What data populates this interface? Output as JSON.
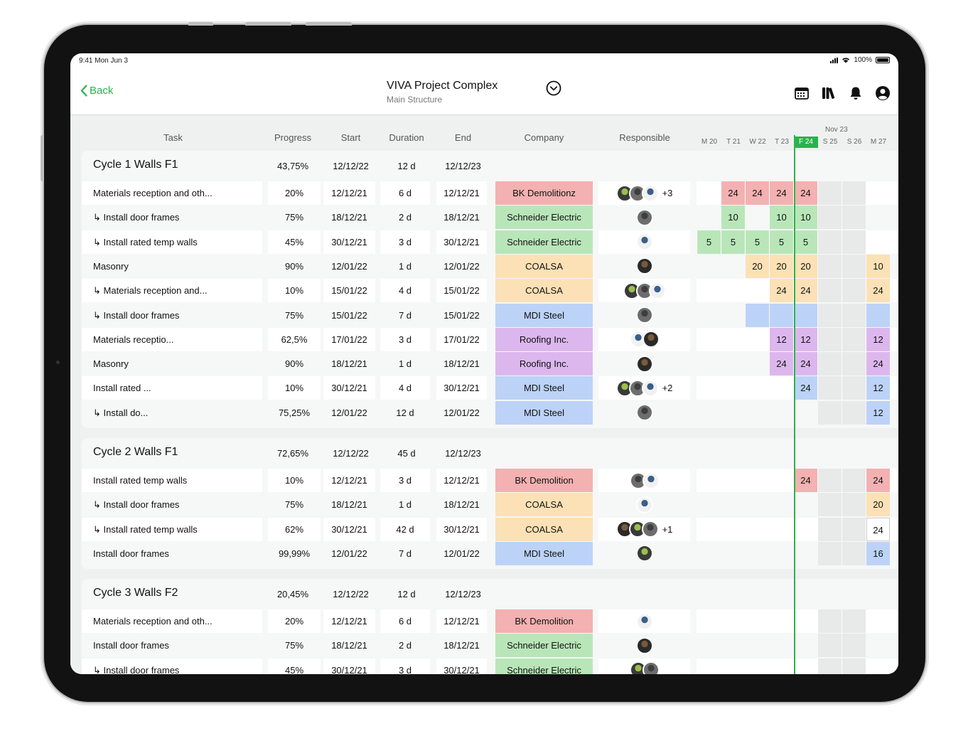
{
  "status_bar": {
    "time": "9:41  Mon Jun 3",
    "battery": "100%"
  },
  "header": {
    "back_label": "Back",
    "title": "VIVA Project Complex",
    "subtitle": "Main Structure",
    "icons": [
      "calendar-icon",
      "library-icon",
      "bell-icon",
      "profile-icon"
    ]
  },
  "columns": {
    "task": "Task",
    "progress": "Progress",
    "start": "Start",
    "duration": "Duration",
    "end": "End",
    "company": "Company",
    "responsible": "Responsible"
  },
  "timeline": {
    "month": "Nov 23",
    "days": [
      "M 20",
      "T 21",
      "W 22",
      "T 23",
      "F 24",
      "S 25",
      "S 26",
      "M 27"
    ],
    "today_index": 4
  },
  "colors": {
    "accent": "#2bb24c",
    "red": "#f3b1b1",
    "green": "#b9e6b9",
    "yellow": "#fbe1b5",
    "blue": "#bcd3f7",
    "purple": "#dcb7ed",
    "weekend": "#e8e9e9"
  },
  "groups": [
    {
      "title": "Cycle 1 Walls F1",
      "progress": "43,75%",
      "start": "12/12/22",
      "duration": "12 d",
      "end": "12/12/23",
      "rows": [
        {
          "task": "Materials reception and oth...",
          "sub": false,
          "progress": "20%",
          "start": "12/12/21",
          "duration": "6 d",
          "end": "12/12/21",
          "company": "BK Demolitionz",
          "color": "red",
          "avatars": 3,
          "more": "+3",
          "gantt": [
            null,
            "24",
            "24",
            "24",
            "24",
            null,
            null,
            null
          ]
        },
        {
          "task": "↳ Install door frames",
          "sub": true,
          "progress": "75%",
          "start": "18/12/21",
          "duration": "2 d",
          "end": "18/12/21",
          "company": "Schneider Electric",
          "color": "green",
          "avatars": 1,
          "more": "",
          "gantt": [
            null,
            "10",
            null,
            "10",
            "10",
            null,
            null,
            null
          ]
        },
        {
          "task": "↳ Install rated temp walls",
          "sub": true,
          "progress": "45%",
          "start": "30/12/21",
          "duration": "3 d",
          "end": "30/12/21",
          "company": "Schneider Electric",
          "color": "green",
          "avatars": 1,
          "more": "",
          "gantt": [
            "5",
            "5",
            "5",
            "5",
            "5",
            null,
            null,
            null
          ]
        },
        {
          "task": "Masonry",
          "sub": false,
          "progress": "90%",
          "start": "12/01/22",
          "duration": "1 d",
          "end": "12/01/22",
          "company": "COALSA",
          "color": "yellow",
          "avatars": 1,
          "more": "",
          "gantt": [
            null,
            null,
            "20",
            "20",
            "20",
            null,
            null,
            "10"
          ]
        },
        {
          "task": "↳ Materials reception and...",
          "sub": true,
          "progress": "10%",
          "start": "15/01/22",
          "duration": "4 d",
          "end": "15/01/22",
          "company": "COALSA",
          "color": "yellow",
          "avatars": 3,
          "more": "",
          "gantt": [
            null,
            null,
            null,
            "24",
            "24",
            null,
            null,
            "24"
          ]
        },
        {
          "task": "↳ Install door frames",
          "sub": true,
          "progress": "75%",
          "start": "15/01/22",
          "duration": "7 d",
          "end": "15/01/22",
          "company": "MDI Steel",
          "color": "blue",
          "avatars": 1,
          "more": "",
          "gantt": [
            null,
            null,
            "",
            "",
            "",
            null,
            null,
            ""
          ]
        },
        {
          "task": "Materials receptio...",
          "sub": false,
          "progress": "62,5%",
          "start": "17/01/22",
          "duration": "3 d",
          "end": "17/01/22",
          "company": "Roofing Inc.",
          "color": "purple",
          "avatars": 2,
          "more": "",
          "gantt": [
            null,
            null,
            null,
            "12",
            "12",
            null,
            null,
            "12"
          ]
        },
        {
          "task": "Masonry",
          "sub": false,
          "progress": "90%",
          "start": "18/12/21",
          "duration": "1 d",
          "end": "18/12/21",
          "company": "Roofing Inc.",
          "color": "purple",
          "avatars": 1,
          "more": "",
          "gantt": [
            null,
            null,
            null,
            "24",
            "24",
            null,
            null,
            "24"
          ]
        },
        {
          "task": "Install rated ...",
          "sub": false,
          "progress": "10%",
          "start": "30/12/21",
          "duration": "4 d",
          "end": "30/12/21",
          "company": "MDI Steel",
          "color": "blue",
          "avatars": 3,
          "more": "+2",
          "gantt": [
            null,
            null,
            null,
            null,
            "24",
            null,
            null,
            "12"
          ]
        },
        {
          "task": "↳ Install do...",
          "sub": true,
          "progress": "75,25%",
          "start": "12/01/22",
          "duration": "12 d",
          "end": "12/01/22",
          "company": "MDI Steel",
          "color": "blue",
          "avatars": 1,
          "more": "",
          "gantt": [
            null,
            null,
            null,
            null,
            null,
            null,
            null,
            "12"
          ]
        }
      ]
    },
    {
      "title": "Cycle 2 Walls F1",
      "progress": "72,65%",
      "start": "12/12/22",
      "duration": "45 d",
      "end": "12/12/23",
      "rows": [
        {
          "task": "Install rated temp walls",
          "sub": false,
          "progress": "10%",
          "start": "12/12/21",
          "duration": "3 d",
          "end": "12/12/21",
          "company": "BK Demolition",
          "color": "red",
          "avatars": 2,
          "more": "",
          "gantt": [
            null,
            null,
            null,
            null,
            "24",
            null,
            null,
            "24"
          ]
        },
        {
          "task": "↳ Install door frames",
          "sub": true,
          "progress": "75%",
          "start": "18/12/21",
          "duration": "1 d",
          "end": "18/12/21",
          "company": "COALSA",
          "color": "yellow",
          "avatars": 1,
          "more": "",
          "gantt": [
            null,
            null,
            null,
            null,
            null,
            null,
            null,
            "20"
          ]
        },
        {
          "task": "↳ Install rated temp walls",
          "sub": true,
          "progress": "62%",
          "start": "30/12/21",
          "duration": "42 d",
          "end": "30/12/21",
          "company": "COALSA",
          "color": "yellow",
          "avatars": 3,
          "more": "+1",
          "gantt": [
            null,
            null,
            null,
            null,
            null,
            null,
            null,
            "24"
          ]
        },
        {
          "task": "Install door frames",
          "sub": false,
          "progress": "99,99%",
          "start": "12/01/22",
          "duration": "7 d",
          "end": "12/01/22",
          "company": "MDI Steel",
          "color": "blue",
          "avatars": 1,
          "more": "",
          "gantt": [
            null,
            null,
            null,
            null,
            null,
            null,
            null,
            "16"
          ]
        }
      ]
    },
    {
      "title": "Cycle 3 Walls F2",
      "progress": "20,45%",
      "start": "12/12/22",
      "duration": "12 d",
      "end": "12/12/23",
      "rows": [
        {
          "task": "Materials reception and oth...",
          "sub": false,
          "progress": "20%",
          "start": "12/12/21",
          "duration": "6 d",
          "end": "12/12/21",
          "company": "BK Demolition",
          "color": "red",
          "avatars": 1,
          "more": "",
          "gantt": [
            null,
            null,
            null,
            null,
            null,
            null,
            null,
            null
          ]
        },
        {
          "task": "Install door frames",
          "sub": false,
          "progress": "75%",
          "start": "18/12/21",
          "duration": "2 d",
          "end": "18/12/21",
          "company": "Schneider Electric",
          "color": "green",
          "avatars": 1,
          "more": "",
          "gantt": [
            null,
            null,
            null,
            null,
            null,
            null,
            null,
            null
          ]
        },
        {
          "task": "↳ Install door frames",
          "sub": false,
          "progress": "45%",
          "start": "30/12/21",
          "duration": "3 d",
          "end": "30/12/21",
          "company": "Schneider Electric",
          "color": "green",
          "avatars": 2,
          "more": "",
          "gantt": [
            null,
            null,
            null,
            null,
            null,
            null,
            null,
            null
          ]
        }
      ]
    }
  ]
}
